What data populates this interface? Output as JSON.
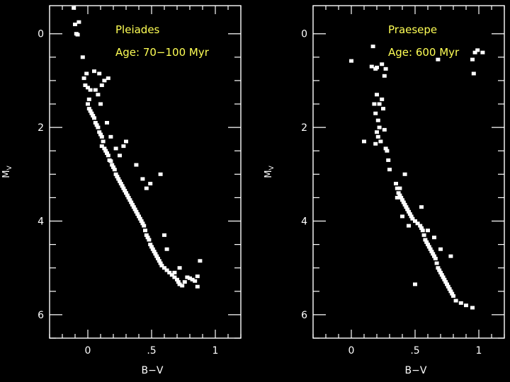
{
  "colors": {
    "background": "#000000",
    "axis": "#ffffff",
    "points": "#ffffff",
    "annotation": "#ffff55"
  },
  "chart_data": [
    {
      "type": "scatter",
      "title": "Pleiades",
      "subtitle": "Age: 70−100 Myr",
      "xlabel": "B−V",
      "ylabel": "M_V",
      "xlim": [
        -0.3,
        1.2
      ],
      "ylim": [
        6.5,
        -0.6
      ],
      "y_inverted": true,
      "xticks": [
        0,
        0.5,
        1
      ],
      "xtick_labels": [
        "0",
        ".5",
        "1"
      ],
      "yticks": [
        0,
        2,
        4,
        6
      ],
      "ytick_labels": [
        "0",
        "2",
        "4",
        "6"
      ],
      "grid": false,
      "series": [
        {
          "x": [
            -0.11,
            -0.1,
            -0.09,
            -0.07,
            -0.08,
            -0.04,
            -0.01,
            -0.03,
            -0.02,
            0.0,
            0.02,
            0.01,
            0.0,
            0.01,
            0.02,
            0.03,
            0.04,
            0.05,
            0.06,
            0.07,
            0.08,
            0.09,
            0.1,
            0.11,
            0.12,
            0.11,
            0.13,
            0.14,
            0.15,
            0.16,
            0.17,
            0.18,
            0.19,
            0.2,
            0.21,
            0.22,
            0.23,
            0.24,
            0.25,
            0.26,
            0.27,
            0.28,
            0.29,
            0.3,
            0.31,
            0.32,
            0.33,
            0.34,
            0.35,
            0.36,
            0.37,
            0.38,
            0.39,
            0.4,
            0.41,
            0.42,
            0.43,
            0.44,
            0.45,
            0.46,
            0.47,
            0.48,
            0.49,
            0.5,
            0.51,
            0.52,
            0.53,
            0.54,
            0.55,
            0.56,
            0.57,
            0.58,
            0.6,
            0.62,
            0.64,
            0.66,
            0.68,
            0.7,
            0.71,
            0.72,
            0.74,
            0.76,
            0.78,
            0.8,
            0.82,
            0.84,
            0.86,
            0.62,
            0.6,
            0.57,
            0.49,
            0.88,
            0.86,
            0.68,
            0.72,
            0.46,
            0.43,
            0.38,
            0.3,
            0.28,
            0.25,
            0.22,
            0.18,
            0.15,
            0.1,
            0.08,
            0.06,
            0.09,
            0.05,
            0.11,
            0.13,
            0.16
          ],
          "y": [
            -0.55,
            -0.2,
            0.0,
            -0.25,
            0.02,
            0.5,
            0.85,
            0.95,
            1.1,
            1.15,
            1.2,
            1.4,
            1.5,
            1.6,
            1.65,
            1.7,
            1.75,
            1.8,
            1.9,
            1.95,
            2.0,
            2.1,
            2.15,
            2.2,
            2.3,
            2.4,
            2.45,
            2.5,
            2.55,
            2.6,
            2.7,
            2.72,
            2.8,
            2.85,
            2.9,
            3.0,
            3.05,
            3.1,
            3.15,
            3.2,
            3.25,
            3.3,
            3.35,
            3.4,
            3.45,
            3.5,
            3.55,
            3.6,
            3.65,
            3.7,
            3.75,
            3.8,
            3.85,
            3.9,
            3.95,
            4.0,
            4.05,
            4.1,
            4.2,
            4.3,
            4.35,
            4.4,
            4.5,
            4.55,
            4.6,
            4.65,
            4.7,
            4.75,
            4.8,
            4.85,
            4.9,
            4.95,
            5.0,
            5.05,
            5.1,
            5.15,
            5.2,
            5.25,
            5.3,
            5.35,
            5.38,
            5.3,
            5.2,
            5.22,
            5.25,
            5.28,
            5.4,
            4.6,
            4.3,
            3.0,
            3.2,
            4.85,
            5.18,
            5.1,
            5.0,
            3.3,
            3.1,
            2.8,
            2.3,
            2.4,
            2.6,
            2.45,
            2.2,
            1.9,
            1.5,
            1.3,
            1.2,
            0.85,
            0.8,
            1.1,
            1.0,
            0.95
          ]
        }
      ]
    },
    {
      "type": "scatter",
      "title": "Praesepe",
      "subtitle": "Age: 600 Myr",
      "xlabel": "B−V",
      "ylabel": "M_V",
      "xlim": [
        -0.3,
        1.2
      ],
      "ylim": [
        6.5,
        -0.6
      ],
      "y_inverted": true,
      "xticks": [
        0,
        0.5,
        1
      ],
      "xtick_labels": [
        "0",
        ".5",
        "1"
      ],
      "yticks": [
        0,
        2,
        4,
        6
      ],
      "ytick_labels": [
        "0",
        "2",
        "4",
        "6"
      ],
      "grid": false,
      "series": [
        {
          "x": [
            0.0,
            0.17,
            0.16,
            0.19,
            0.2,
            0.24,
            0.26,
            0.27,
            0.68,
            0.95,
            0.97,
            0.99,
            1.03,
            0.96,
            0.18,
            0.2,
            0.19,
            0.21,
            0.22,
            0.2,
            0.21,
            0.23,
            0.24,
            0.25,
            0.26,
            0.27,
            0.28,
            0.29,
            0.3,
            0.22,
            0.1,
            0.19,
            0.35,
            0.36,
            0.37,
            0.38,
            0.39,
            0.4,
            0.41,
            0.42,
            0.43,
            0.44,
            0.45,
            0.46,
            0.47,
            0.48,
            0.5,
            0.52,
            0.54,
            0.55,
            0.56,
            0.57,
            0.58,
            0.59,
            0.6,
            0.61,
            0.62,
            0.63,
            0.64,
            0.65,
            0.66,
            0.67,
            0.68,
            0.69,
            0.7,
            0.71,
            0.72,
            0.73,
            0.74,
            0.75,
            0.76,
            0.77,
            0.78,
            0.79,
            0.8,
            0.82,
            0.86,
            0.9,
            0.95,
            0.78,
            0.5,
            0.55,
            0.6,
            0.65,
            0.7,
            0.45,
            0.4,
            0.38,
            0.36,
            0.42
          ],
          "y": [
            0.58,
            0.27,
            0.7,
            0.75,
            0.72,
            0.65,
            0.9,
            0.75,
            0.55,
            0.55,
            0.4,
            0.35,
            0.4,
            0.85,
            1.5,
            1.3,
            1.7,
            1.85,
            2.0,
            2.1,
            2.2,
            2.3,
            1.4,
            1.6,
            2.05,
            2.45,
            2.5,
            2.7,
            2.9,
            1.5,
            2.3,
            2.35,
            3.2,
            3.3,
            3.4,
            3.45,
            3.5,
            3.55,
            3.6,
            3.65,
            3.7,
            3.75,
            3.8,
            3.85,
            3.9,
            3.95,
            4.0,
            4.05,
            4.1,
            4.15,
            4.2,
            4.3,
            4.4,
            4.45,
            4.5,
            4.55,
            4.6,
            4.65,
            4.7,
            4.75,
            4.8,
            4.9,
            5.0,
            5.05,
            5.1,
            5.15,
            5.2,
            5.25,
            5.3,
            5.35,
            5.4,
            5.45,
            5.5,
            5.55,
            5.6,
            5.7,
            5.75,
            5.8,
            5.85,
            4.75,
            5.35,
            3.7,
            4.2,
            4.35,
            4.6,
            4.1,
            3.9,
            3.3,
            3.5,
            3.0
          ]
        }
      ]
    }
  ]
}
